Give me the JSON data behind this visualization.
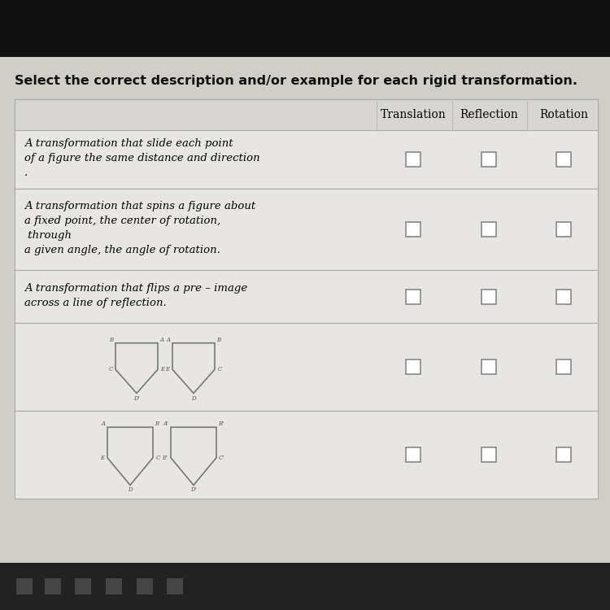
{
  "title": "Select the correct description and/or example for each rigid transformation.",
  "col_headers": [
    "Translation",
    "Reflection",
    "Rotation"
  ],
  "rows_text": [
    "A transformation that slide each point\nof a figure the same distance and direction\n.",
    "A transformation that spins a figure about\na fixed point, the center of rotation,\n through\na given angle, the angle of rotation.",
    "A transformation that flips a pre – image\nacross a line of reflection.",
    "figure_reflection",
    "figure_translation"
  ],
  "bg_color": "#c8c8c8",
  "content_bg": "#d0cec8",
  "table_bg": "#e8e6e2",
  "outer_bg": "#111111",
  "taskbar_bg": "#222222",
  "title_color": "#111111",
  "header_bg": "#d8d6d2",
  "checkbox_color": "#888888",
  "figure_color": "#777777",
  "label_color": "#555555"
}
